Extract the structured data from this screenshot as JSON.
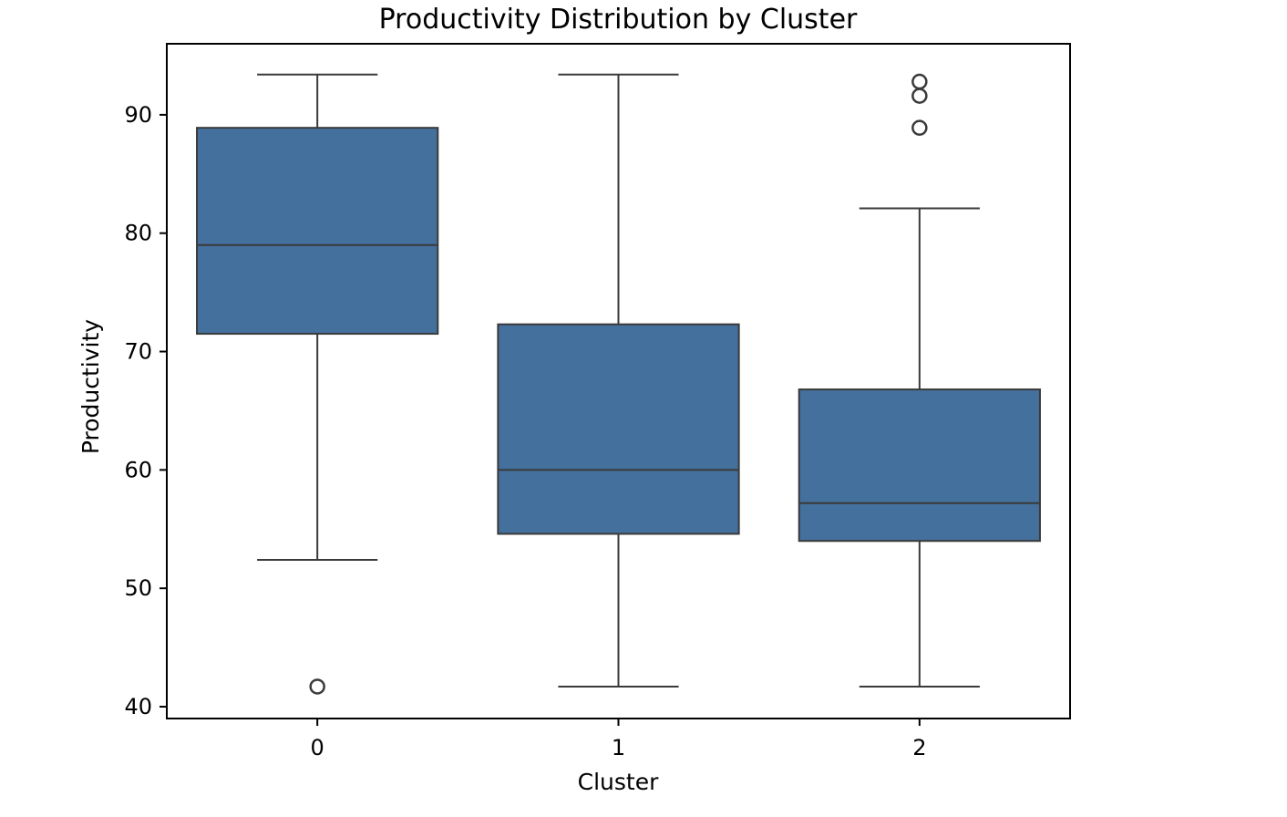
{
  "chart_data": {
    "type": "box",
    "title": "Productivity Distribution by Cluster",
    "xlabel": "Cluster",
    "ylabel": "Productivity",
    "ylim": [
      39,
      96
    ],
    "yticks": [
      "40",
      "50",
      "60",
      "70",
      "80",
      "90"
    ],
    "categories": [
      "0",
      "1",
      "2"
    ],
    "colors": {
      "box": "#44709d",
      "line": "#3a3a3a",
      "axis": "#000000"
    },
    "grid": false,
    "legend": "none",
    "boxes": [
      {
        "category": "0",
        "whisker_low": 52.4,
        "q1": 71.5,
        "median": 79.0,
        "q3": 88.9,
        "whisker_high": 93.4,
        "outliers": [
          41.7
        ]
      },
      {
        "category": "1",
        "whisker_low": 41.7,
        "q1": 54.6,
        "median": 60.0,
        "q3": 72.3,
        "whisker_high": 93.4,
        "outliers": []
      },
      {
        "category": "2",
        "whisker_low": 41.7,
        "q1": 54.0,
        "median": 57.2,
        "q3": 66.8,
        "whisker_high": 82.1,
        "outliers": [
          88.9,
          91.6,
          92.8
        ]
      }
    ]
  }
}
